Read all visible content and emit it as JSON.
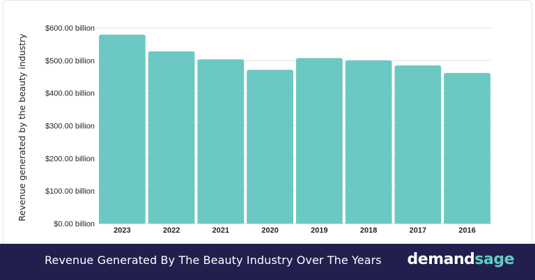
{
  "chart_data": {
    "type": "bar",
    "title": "Revenue Generated By The Beauty Industry Over The Years",
    "xlabel": "",
    "ylabel": "Revenue generated by the beauty industry",
    "categories": [
      "2023",
      "2022",
      "2021",
      "2020",
      "2019",
      "2018",
      "2017",
      "2016"
    ],
    "values": [
      579.2,
      528,
      503.3,
      471.4,
      507.5,
      500.5,
      484.6,
      461.7
    ],
    "ylim": [
      0,
      600
    ],
    "yticks": [
      0,
      100,
      200,
      300,
      400,
      500,
      600
    ],
    "ytick_labels": [
      "$0.00 billion",
      "$100.00 billion",
      "$200.00 billion",
      "$300.00 billion",
      "$400.00 billion",
      "$500.00 billion",
      "$600.00 billion"
    ],
    "bar_color": "#6cc8c2",
    "grid": true,
    "legend": "none"
  },
  "footer": {
    "title": "Revenue Generated By The Beauty Industry Over The Years",
    "logo_part1": "demand",
    "logo_part2": "sage",
    "background": "#221f4f",
    "accent": "#5fcfc2"
  }
}
